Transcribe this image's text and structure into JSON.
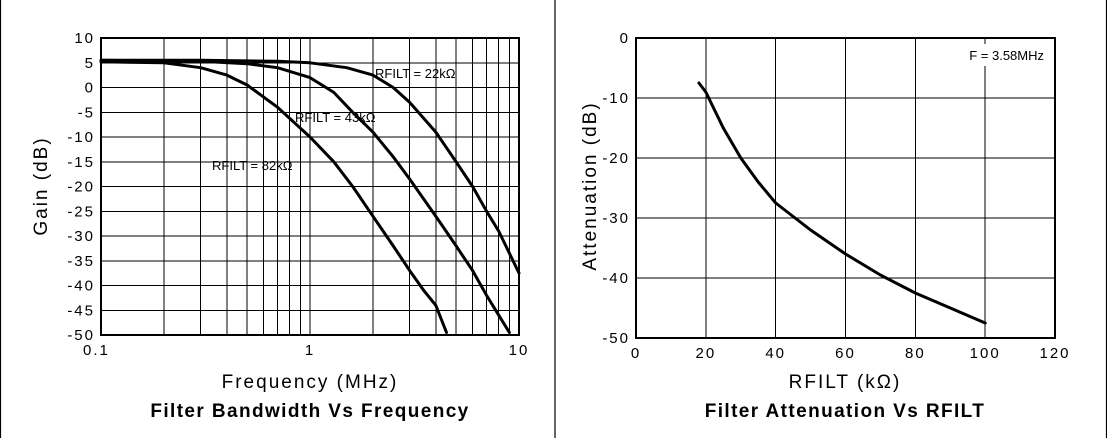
{
  "chart_data": [
    {
      "type": "line",
      "title": "Filter Bandwidth Vs Frequency",
      "xlabel": "Frequency (MHz)",
      "ylabel": "Gain (dB)",
      "xscale": "log",
      "xlim": [
        0.1,
        10
      ],
      "ylim": [
        -50,
        10
      ],
      "grid": true,
      "xticks": [
        "0.1",
        "1",
        "10"
      ],
      "yticks": [
        "10",
        "5",
        "0",
        "-5",
        "-10",
        "-15",
        "-20",
        "-25",
        "-30",
        "-35",
        "-40",
        "-45",
        "-50"
      ],
      "series": [
        {
          "name": "RFILT = 22kΩ",
          "x": [
            0.1,
            0.3,
            0.7,
            1.0,
            1.5,
            2.0,
            2.5,
            3.0,
            4.0,
            5.0,
            6.0,
            7.0,
            8.0,
            10.0
          ],
          "values": [
            5.5,
            5.5,
            5.3,
            5.0,
            4.0,
            2.5,
            0.0,
            -3.0,
            -9.0,
            -15.0,
            -20.0,
            -25.0,
            -29.0,
            -37.5
          ]
        },
        {
          "name": "RFILT = 43kΩ",
          "x": [
            0.1,
            0.3,
            0.5,
            0.7,
            1.0,
            1.3,
            1.6,
            2.0,
            2.5,
            3.0,
            4.0,
            5.0,
            6.0,
            7.0,
            8.0,
            9.0
          ],
          "values": [
            5.5,
            5.3,
            4.8,
            4.0,
            2.0,
            -1.0,
            -5.0,
            -9.0,
            -14.0,
            -18.5,
            -26.0,
            -32.0,
            -37.0,
            -42.0,
            -46.0,
            -49.5
          ]
        },
        {
          "name": "RFILT = 82kΩ",
          "x": [
            0.1,
            0.2,
            0.3,
            0.4,
            0.5,
            0.7,
            1.0,
            1.3,
            1.6,
            2.0,
            2.5,
            3.0,
            3.5,
            4.0,
            4.5
          ],
          "values": [
            5.2,
            5.0,
            4.0,
            2.5,
            0.5,
            -4.0,
            -10.0,
            -15.0,
            -20.0,
            -26.0,
            -32.0,
            -37.0,
            -41.0,
            -44.0,
            -49.5
          ]
        }
      ]
    },
    {
      "type": "line",
      "title": "Filter Attenuation Vs RFILT",
      "xlabel": "RFILT (kΩ)",
      "ylabel": "Attenuation (dB)",
      "xlim": [
        0,
        120
      ],
      "ylim": [
        -50,
        0
      ],
      "grid": true,
      "xticks": [
        "0",
        "20",
        "40",
        "60",
        "80",
        "100",
        "120"
      ],
      "yticks": [
        "0",
        "-10",
        "-20",
        "-30",
        "-40",
        "-50"
      ],
      "annotation": "F = 3.58MHz",
      "series": [
        {
          "x": [
            18,
            20,
            25,
            30,
            35,
            40,
            50,
            60,
            70,
            80,
            90,
            100
          ],
          "values": [
            -7.5,
            -9.0,
            -15.0,
            -20.0,
            -24.0,
            -27.5,
            -32.0,
            -36.0,
            -39.5,
            -42.5,
            -45.0,
            -47.5
          ]
        }
      ]
    }
  ]
}
